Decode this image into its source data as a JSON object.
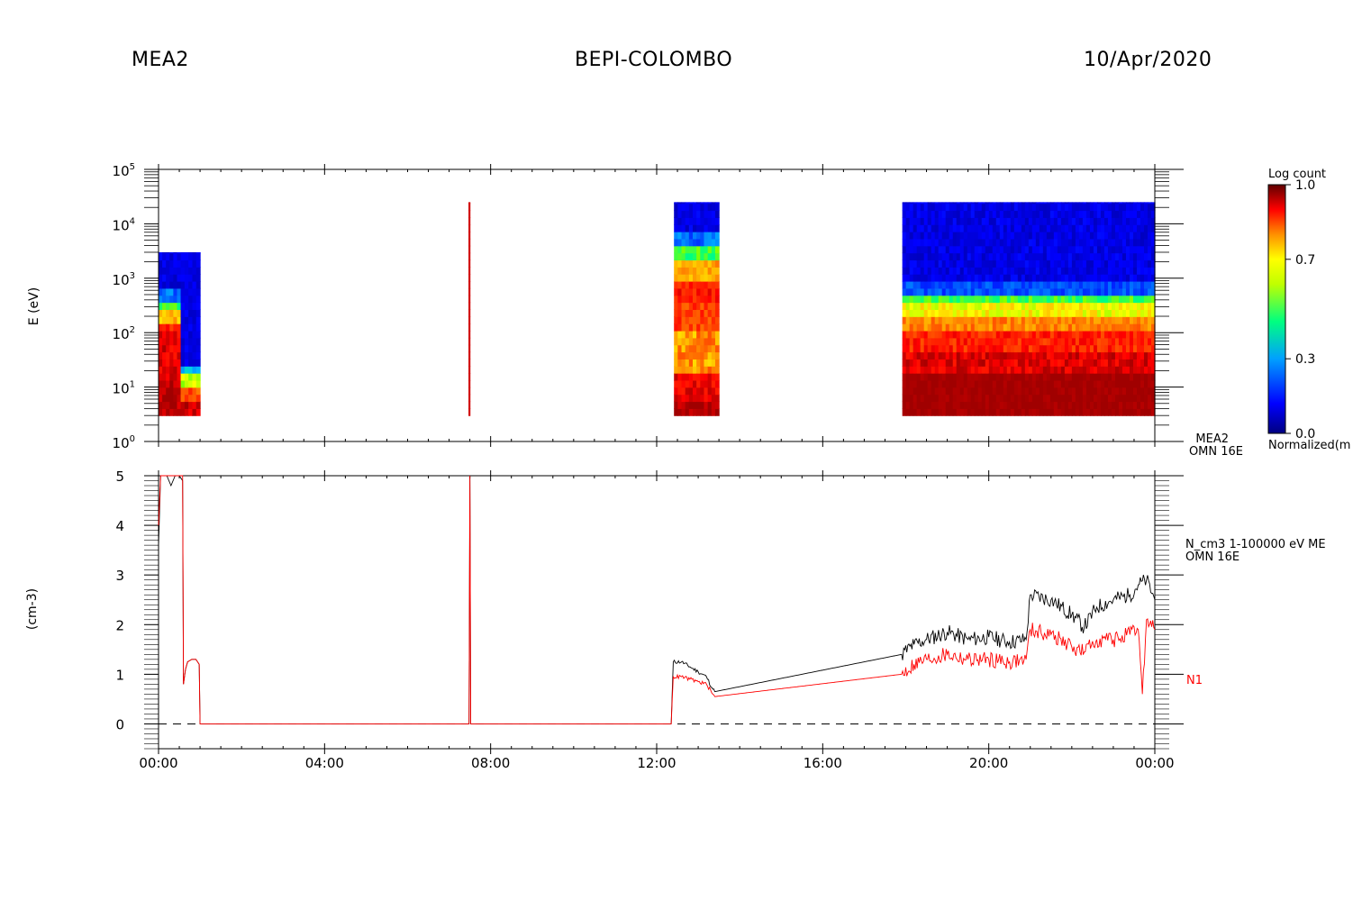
{
  "header": {
    "left": "MEA2",
    "center": "BEPI-COLOMBO",
    "right": "10/Apr/2020"
  },
  "colors": {
    "line_total": "#000000",
    "line_n1": "#ff0000",
    "colormap": [
      "#000080",
      "#0000ff",
      "#0080ff",
      "#00c0ff",
      "#00ff80",
      "#80ff00",
      "#ffff00",
      "#ffa000",
      "#ff5000",
      "#ff0000",
      "#a00000"
    ]
  },
  "chart_data": [
    {
      "type": "heatmap",
      "ylabel": "E (eV)",
      "yscale": "log",
      "ylim": [
        1,
        100000
      ],
      "ytick_labels": [
        "10^0",
        "10^1",
        "10^2",
        "10^3",
        "10^4",
        "10^5"
      ],
      "xlim_hours": [
        0,
        24
      ],
      "colorbar": {
        "title": "Log count",
        "bottom_label": "Normalized(m",
        "range": [
          0.0,
          1.0
        ],
        "tick_labels": [
          "1.0",
          "0.7",
          "0.3",
          "0.0"
        ]
      },
      "side_label": [
        "MEA2",
        "OMN 16E"
      ],
      "data_blocks": [
        {
          "start": "00:00",
          "end": "00:32",
          "e_range_eV": [
            3,
            3000
          ],
          "profile": "red at low energies, blue above 300 eV"
        },
        {
          "start": "00:32",
          "end": "01:00",
          "e_range_eV": [
            3,
            3000
          ],
          "profile": "blue/green, red below 10 eV"
        },
        {
          "start": "07:28",
          "end": "07:30",
          "e_range_eV": [
            3,
            25000
          ],
          "profile": "single red spike"
        },
        {
          "start": "12:25",
          "end": "13:30",
          "e_range_eV": [
            3,
            25000
          ],
          "profile": "red/yellow up to 3000 eV, blue above"
        },
        {
          "start": "17:55",
          "end": "24:00",
          "e_range_eV": [
            3,
            25000
          ],
          "profile": "dark red below 20 eV, yellow-green 100-500 eV, blue above"
        }
      ]
    },
    {
      "type": "line",
      "ylabel": "(cm-3)",
      "ylim": [
        -0.5,
        5
      ],
      "yticks": [
        0,
        1,
        2,
        3,
        4,
        5
      ],
      "xtick_labels": [
        "00:00",
        "04:00",
        "08:00",
        "12:00",
        "16:00",
        "20:00",
        "00:00"
      ],
      "xticks_hours": [
        0,
        4,
        8,
        12,
        16,
        20,
        24
      ],
      "legend_label": [
        "N_cm3 1-100000 eV ME",
        "OMN 16E"
      ],
      "series_label": "N1",
      "series": [
        {
          "color": "#000000",
          "x_hours": [
            0,
            0.05,
            0.1,
            0.2,
            0.3,
            0.4,
            0.5,
            0.58,
            0.6,
            0.65,
            0.7,
            0.8,
            0.9,
            0.98,
            1.0,
            7.48,
            7.5,
            7.52,
            12.35,
            12.4,
            12.6,
            12.8,
            13.0,
            13.2,
            13.35,
            13.4,
            17.9,
            18.2,
            18.5,
            19.0,
            19.5,
            20.0,
            20.5,
            20.9,
            21.0,
            21.5,
            22.0,
            22.3,
            22.6,
            23.0,
            23.4,
            23.6,
            23.8,
            24.0
          ],
          "y": [
            3.6,
            5,
            5,
            5,
            4.8,
            5,
            5,
            4.9,
            0.8,
            1.1,
            1.25,
            1.3,
            1.3,
            1.2,
            0,
            0,
            5,
            0,
            0,
            1.25,
            1.25,
            1.15,
            1.05,
            0.95,
            0.7,
            0.65,
            1.4,
            1.6,
            1.7,
            1.85,
            1.7,
            1.75,
            1.65,
            1.7,
            2.6,
            2.5,
            2.2,
            1.95,
            2.35,
            2.5,
            2.6,
            2.8,
            2.9,
            2.5
          ]
        },
        {
          "color": "#ff0000",
          "x_hours": [
            0,
            0.05,
            0.1,
            0.2,
            0.3,
            0.4,
            0.5,
            0.58,
            0.6,
            0.65,
            0.7,
            0.8,
            0.9,
            0.98,
            1.0,
            7.48,
            7.5,
            7.52,
            12.35,
            12.4,
            12.6,
            12.8,
            13.0,
            13.2,
            13.35,
            13.4,
            17.9,
            18.2,
            18.5,
            19.0,
            19.5,
            20.0,
            20.5,
            20.9,
            21.0,
            21.5,
            22.0,
            22.3,
            22.6,
            23.0,
            23.4,
            23.6,
            23.7,
            23.8,
            24.0
          ],
          "y": [
            4.0,
            5,
            5,
            5,
            5,
            5,
            5,
            5,
            0.8,
            1.1,
            1.25,
            1.3,
            1.3,
            1.2,
            0,
            0,
            5,
            0,
            0,
            0.95,
            0.95,
            0.9,
            0.85,
            0.8,
            0.6,
            0.55,
            1.0,
            1.2,
            1.3,
            1.4,
            1.3,
            1.3,
            1.25,
            1.3,
            1.9,
            1.8,
            1.55,
            1.45,
            1.7,
            1.7,
            1.8,
            1.9,
            0.6,
            2.1,
            1.9
          ]
        }
      ],
      "zero_line": "dashed"
    }
  ]
}
